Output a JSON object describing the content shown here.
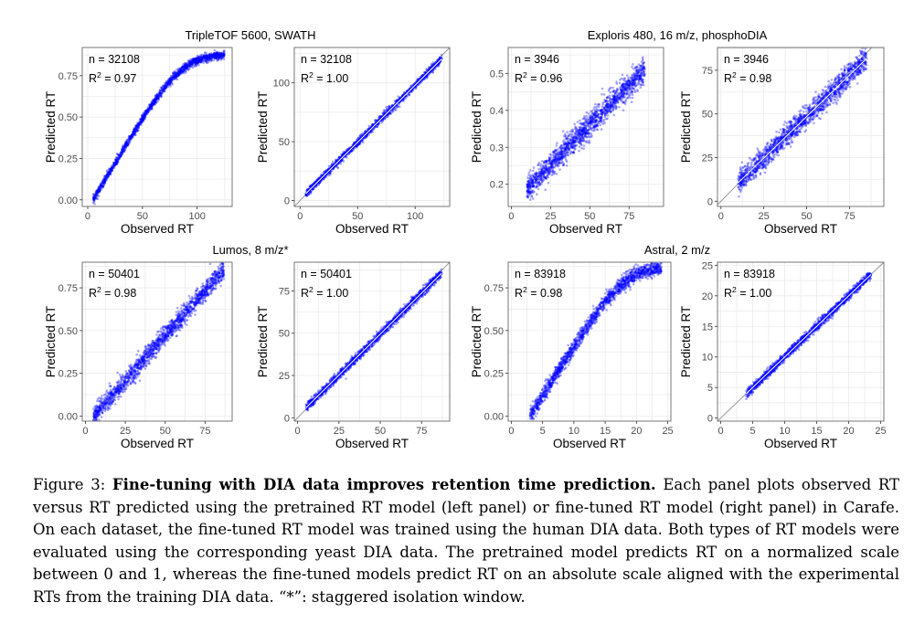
{
  "colors": {
    "points": "#0000ff",
    "diag": "#9a9a9a",
    "grid": "#ebebeb",
    "frame": "#555555",
    "fit": "#ffffff"
  },
  "chart_data": [
    {
      "type": "scatter",
      "group_title": "TripleTOF 5600, SWATH",
      "variant": "pretrained",
      "xlabel": "Observed RT",
      "ylabel": "Predicted RT",
      "xlim": [
        -5,
        132
      ],
      "ylim": [
        -0.04,
        0.92
      ],
      "xticks": [
        0,
        50,
        100
      ],
      "yticks": [
        0,
        0.25,
        0.5,
        0.75
      ],
      "yticklabels": [
        "0.00",
        "0.25",
        "0.50",
        "0.75"
      ],
      "n_label": "n = 32108",
      "r2_value": "0.97",
      "x_range": [
        5,
        125
      ],
      "sigmoid": true,
      "ymax_curve": 0.88,
      "knee": 85,
      "noise": 0.012
    },
    {
      "type": "scatter",
      "group_title": "TripleTOF 5600, SWATH",
      "variant": "fine-tuned",
      "xlabel": "Observed RT",
      "ylabel": "Predicted RT",
      "xlim": [
        -5,
        130
      ],
      "ylim": [
        -5,
        130
      ],
      "xticks": [
        0,
        50,
        100
      ],
      "yticks": [
        0,
        50,
        100
      ],
      "yticklabels": [
        "0",
        "50",
        "100"
      ],
      "n_label": "n = 32108",
      "r2_value": "1.00",
      "x_range": [
        5,
        123
      ],
      "slope": 0.97,
      "intercept": 1,
      "noise": 1.6
    },
    {
      "type": "scatter",
      "group_title": "Exploris 480, 16 m/z, phosphoDIA",
      "variant": "pretrained",
      "xlabel": "Observed RT",
      "ylabel": "Predicted RT",
      "xlim": [
        -2,
        97
      ],
      "ylim": [
        0.14,
        0.57
      ],
      "xticks": [
        0,
        25,
        50,
        75
      ],
      "yticks": [
        0.2,
        0.3,
        0.4,
        0.5
      ],
      "yticklabels": [
        "0.2",
        "0.3",
        "0.4",
        "0.5"
      ],
      "n_label": "n = 3946",
      "r2_value": "0.96",
      "x_range": [
        10,
        85
      ],
      "slope": 0.0043,
      "intercept": 0.145,
      "noise": 0.017
    },
    {
      "type": "scatter",
      "group_title": "Exploris 480, 16 m/z, phosphoDIA",
      "variant": "fine-tuned",
      "xlabel": "Observed RT",
      "ylabel": "Predicted RT",
      "xlim": [
        -2,
        95
      ],
      "ylim": [
        -3,
        88
      ],
      "xticks": [
        0,
        25,
        50,
        75
      ],
      "yticks": [
        0,
        25,
        50,
        75
      ],
      "yticklabels": [
        "0",
        "25",
        "50",
        "75"
      ],
      "n_label": "n = 3946",
      "r2_value": "0.98",
      "x_range": [
        10,
        85
      ],
      "slope": 0.95,
      "intercept": 1,
      "noise": 3.2
    },
    {
      "type": "scatter",
      "group_title": "Lumos, 8 m/z*",
      "variant": "pretrained",
      "xlabel": "Observed RT",
      "ylabel": "Predicted RT",
      "xlim": [
        -2,
        92
      ],
      "ylim": [
        -0.03,
        0.9
      ],
      "xticks": [
        0,
        25,
        50,
        75
      ],
      "yticks": [
        0,
        0.25,
        0.5,
        0.75
      ],
      "yticklabels": [
        "0.00",
        "0.25",
        "0.50",
        "0.75"
      ],
      "n_label": "n = 50401",
      "r2_value": "0.98",
      "x_range": [
        5,
        87
      ],
      "slope": 0.0106,
      "intercept": -0.06,
      "noise": 0.028
    },
    {
      "type": "scatter",
      "group_title": "Lumos, 8 m/z*",
      "variant": "fine-tuned",
      "xlabel": "Observed RT",
      "ylabel": "Predicted RT",
      "xlim": [
        -2,
        92
      ],
      "ylim": [
        -2,
        92
      ],
      "xticks": [
        0,
        25,
        50,
        75
      ],
      "yticks": [
        0,
        25,
        50,
        75
      ],
      "yticklabels": [
        "0",
        "25",
        "50",
        "75"
      ],
      "n_label": "n = 50401",
      "r2_value": "1.00",
      "x_range": [
        5,
        87
      ],
      "slope": 0.97,
      "intercept": 1,
      "noise": 1.3
    },
    {
      "type": "scatter",
      "group_title": "Astral, 2 m/z",
      "variant": "pretrained",
      "xlabel": "Observed RT",
      "ylabel": "Predicted RT",
      "xlim": [
        -0.5,
        25.5
      ],
      "ylim": [
        -0.03,
        0.9
      ],
      "xticks": [
        0,
        5,
        10,
        15,
        20,
        25
      ],
      "yticks": [
        0,
        0.25,
        0.5,
        0.75
      ],
      "yticklabels": [
        "0.00",
        "0.25",
        "0.50",
        "0.75"
      ],
      "n_label": "n = 83918",
      "r2_value": "0.98",
      "x_range": [
        3,
        24
      ],
      "sigmoid": true,
      "ymax_curve": 0.88,
      "knee": 18,
      "noise": 0.022
    },
    {
      "type": "scatter",
      "group_title": "Astral, 2 m/z",
      "variant": "fine-tuned",
      "xlabel": "Observed RT",
      "ylabel": "Predicted RT",
      "xlim": [
        -0.5,
        25.5
      ],
      "ylim": [
        -0.5,
        25.5
      ],
      "xticks": [
        0,
        5,
        10,
        15,
        20,
        25
      ],
      "yticks": [
        0,
        5,
        10,
        15,
        20,
        25
      ],
      "yticklabels": [
        "0",
        "5",
        "10",
        "15",
        "20",
        "25"
      ],
      "n_label": "n = 83918",
      "r2_value": "1.00",
      "x_range": [
        4,
        23.5
      ],
      "slope": 1.0,
      "intercept": 0,
      "noise": 0.35
    }
  ],
  "caption": {
    "label": "Figure 3: ",
    "bold": "Fine-tuning with DIA data improves retention time prediction.",
    "text": " Each panel plots observed RT versus RT predicted using the pretrained RT model (left panel) or fine-tuned RT model (right panel) in Carafe. On each dataset, the fine-tuned RT model was trained using the human DIA data. Both types of RT models were evaluated using the corresponding yeast DIA data. The pretrained model predicts RT on a normalized scale between 0 and 1, whereas the fine-tuned models predict RT on an absolute scale aligned with the experimental RTs from the training DIA data. “*”: staggered isolation window."
  }
}
